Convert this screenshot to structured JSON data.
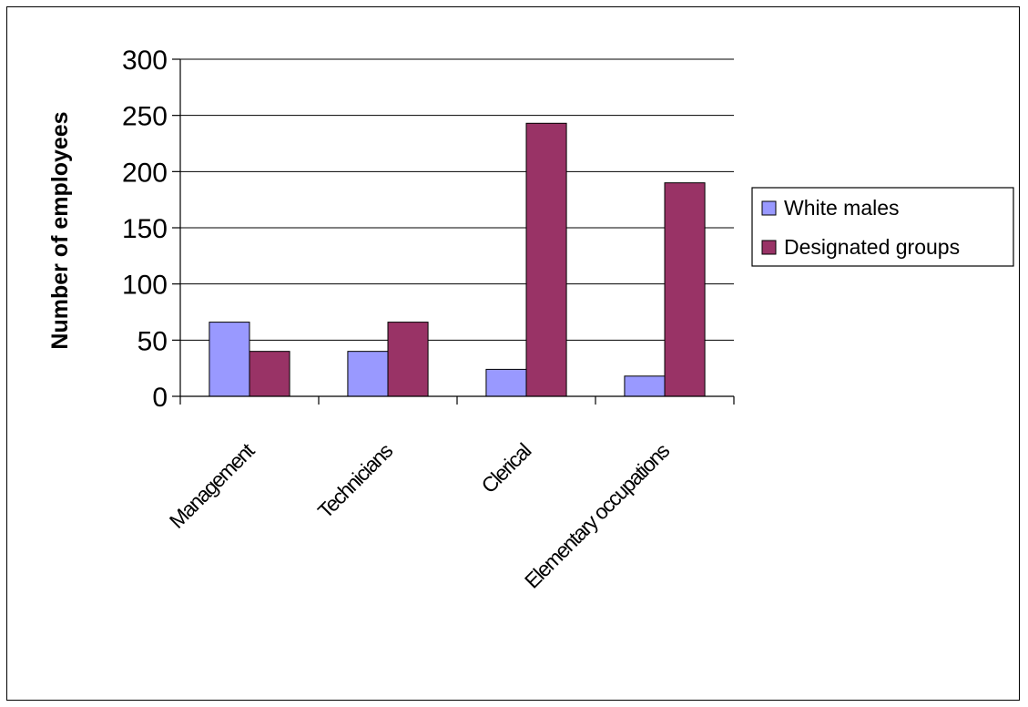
{
  "chart_data": {
    "type": "bar",
    "title": "",
    "xlabel": "",
    "ylabel": "Number of employees",
    "ylim": [
      0,
      300
    ],
    "yticks": [
      0,
      50,
      100,
      150,
      200,
      250,
      300
    ],
    "grid": true,
    "legend_position": "right",
    "categories": [
      "Management",
      "Technicians",
      "Clerical",
      "Elementary occupations"
    ],
    "series": [
      {
        "name": "White males",
        "color": "#9999ff",
        "values": [
          66,
          40,
          24,
          18
        ]
      },
      {
        "name": "Designated groups",
        "color": "#993366",
        "values": [
          40,
          66,
          243,
          190
        ]
      }
    ]
  }
}
